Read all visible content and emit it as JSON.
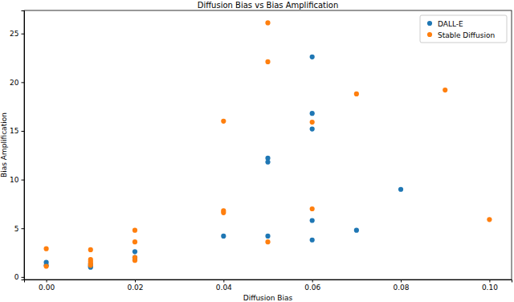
{
  "chart_data": {
    "type": "scatter",
    "title": "Diffusion Bias vs Bias Amplification",
    "x_label": "Diffusion Bias",
    "y_label": "Bias Amplification",
    "xlim": [
      -0.005,
      0.105
    ],
    "ylim": [
      -0.26,
      27.37
    ],
    "xticks": [
      {
        "value": 0,
        "label": "0.00"
      },
      {
        "value": 0.02,
        "label": "0.02"
      },
      {
        "value": 0.04,
        "label": "0.04"
      },
      {
        "value": 0.06,
        "label": "0.06"
      },
      {
        "value": 0.08,
        "label": "0.08"
      },
      {
        "value": 0.1,
        "label": "0.10"
      }
    ],
    "yticks": [
      0,
      5,
      10,
      15,
      20,
      25
    ],
    "grid": false,
    "legend": "upper right",
    "series": [
      {
        "name": "DALL-E",
        "color": "#1f77b4",
        "marker": "o",
        "x": [
          0,
          0,
          0.01,
          0.01,
          0.01,
          0.02,
          0.02,
          0.02,
          0.04,
          0.05,
          0.05,
          0.05,
          0.06,
          0.06,
          0.06,
          0.06,
          0.06,
          0.07,
          0.08
        ],
        "values": [
          1.5,
          1.2,
          1.0,
          1.1,
          1.3,
          2.6,
          2.0,
          1.8,
          4.2,
          12.2,
          11.8,
          4.2,
          22.6,
          16.8,
          15.2,
          5.8,
          3.8,
          4.8,
          9.0
        ]
      },
      {
        "name": "Stable Diffusion",
        "color": "#ff7f0e",
        "marker": "o",
        "x": [
          0,
          0,
          0.01,
          0.01,
          0.01,
          0.01,
          0.01,
          0.02,
          0.02,
          0.02,
          0.02,
          0.04,
          0.04,
          0.04,
          0.05,
          0.05,
          0.05,
          0.06,
          0.06,
          0.07,
          0.09,
          0.1
        ],
        "values": [
          2.9,
          1.1,
          2.8,
          1.8,
          1.6,
          1.4,
          1.2,
          4.8,
          3.6,
          2.0,
          1.7,
          16.0,
          6.8,
          6.6,
          26.1,
          22.1,
          3.6,
          15.9,
          7.0,
          18.8,
          19.2,
          5.9
        ]
      }
    ]
  }
}
